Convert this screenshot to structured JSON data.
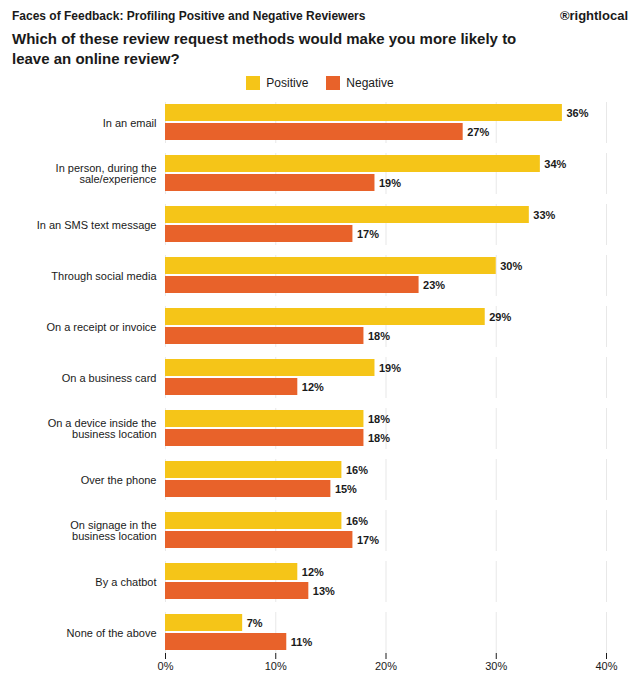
{
  "chart_data": {
    "type": "bar",
    "orientation": "horizontal",
    "title": "Faces of Feedback: Profiling Positive and Negative Reviewers",
    "subtitle": "Which of these review request methods would make you more likely to\nleave an online review?",
    "annotations": [
      "®rightlocal"
    ],
    "categories": [
      "In an email",
      "In person, during the\nsale/experience",
      "In an SMS text message",
      "Through social media",
      "On a receipt or invoice",
      "On a business card",
      "On a device inside the\nbusiness location",
      "Over the phone",
      "On signage in the\nbusiness location",
      "By a chatbot",
      "None of the above"
    ],
    "series": [
      {
        "name": "Positive",
        "color": "#F5C518",
        "values": [
          36,
          34,
          33,
          30,
          29,
          19,
          18,
          16,
          16,
          12,
          7
        ],
        "value_labels": [
          "36%",
          "34%",
          "33%",
          "30%",
          "29%",
          "19%",
          "18%",
          "16%",
          "16%",
          "12%",
          "7%"
        ]
      },
      {
        "name": "Negative",
        "color": "#E8622A",
        "values": [
          27,
          19,
          17,
          23,
          18,
          12,
          18,
          15,
          17,
          13,
          11
        ],
        "value_labels": [
          "27%",
          "19%",
          "17%",
          "23%",
          "18%",
          "12%",
          "18%",
          "15%",
          "17%",
          "13%",
          "11%"
        ]
      }
    ],
    "xlim": [
      0,
      40
    ],
    "xticks": [
      {
        "value": 0,
        "label": "0%"
      },
      {
        "value": 10,
        "label": "10%"
      },
      {
        "value": 20,
        "label": "20%"
      },
      {
        "value": 30,
        "label": "30%"
      },
      {
        "value": 40,
        "label": "40%"
      }
    ],
    "grid": true,
    "legend": "upper center",
    "data_labels": true
  }
}
